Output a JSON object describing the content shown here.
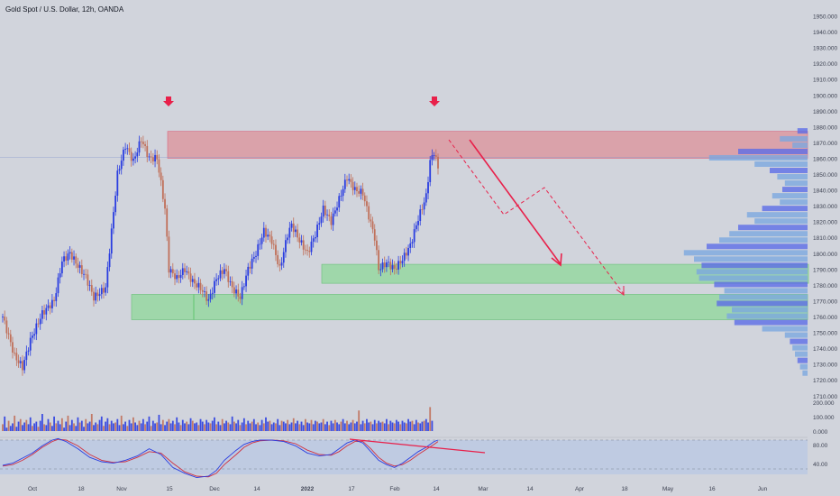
{
  "header": {
    "symbol_title": "Gold Spot / U.S. Dollar, 12h, OANDA"
  },
  "colors": {
    "background": "#d1d4dc",
    "candle_up": "#2a3de0",
    "candle_down": "#c0705a",
    "supply_zone": "#e0828a",
    "demand_zone": "#7ed98a",
    "arrow": "#e8204a",
    "stoch_k": "#2a3de0",
    "stoch_d": "#d03040",
    "stoch_band": "#b8c8e4"
  },
  "chart_data": {
    "type": "candlestick",
    "title": "Gold Spot / U.S. Dollar, 12h, OANDA",
    "xlabel": "",
    "ylabel": "",
    "ylim": [
      1715,
      1952
    ],
    "price_ticks": [
      1950,
      1940,
      1930,
      1920,
      1910,
      1900,
      1890,
      1880,
      1870,
      1860,
      1850,
      1840,
      1830,
      1820,
      1810,
      1800,
      1790,
      1780,
      1770,
      1760,
      1750,
      1740,
      1730,
      1720,
      1710
    ],
    "price_tick_labels": [
      "1950.000",
      "1940.000",
      "1930.000",
      "1920.000",
      "1910.000",
      "1900.000",
      "1890.000",
      "1880.000",
      "1870.000",
      "1860.000",
      "1850.000",
      "1840.000",
      "1830.000",
      "1820.000",
      "1810.000",
      "1800.000",
      "1790.000",
      "1780.000",
      "1770.000",
      "1760.000",
      "1750.000",
      "1740.000",
      "1730.000",
      "1720.000",
      "1710.000"
    ],
    "volume_tick_labels": [
      "200.000",
      "100.000",
      "0.000"
    ],
    "stoch_tick_labels": [
      "80.00",
      "40.00"
    ],
    "time_labels": [
      "Oct",
      "18",
      "Nov",
      "15",
      "Dec",
      "14",
      "2022",
      "17",
      "Feb",
      "14",
      "Mar",
      "14",
      "Apr",
      "18",
      "May",
      "16",
      "Jun"
    ],
    "price_path": [
      [
        0,
        1760
      ],
      [
        6,
        1735
      ],
      [
        10,
        1728
      ],
      [
        14,
        1745
      ],
      [
        20,
        1762
      ],
      [
        26,
        1770
      ],
      [
        30,
        1795
      ],
      [
        34,
        1800
      ],
      [
        38,
        1792
      ],
      [
        42,
        1785
      ],
      [
        46,
        1772
      ],
      [
        52,
        1778
      ],
      [
        58,
        1850
      ],
      [
        62,
        1868
      ],
      [
        66,
        1858
      ],
      [
        70,
        1872
      ],
      [
        74,
        1860
      ],
      [
        78,
        1860
      ],
      [
        82,
        1828
      ],
      [
        84,
        1790
      ],
      [
        88,
        1784
      ],
      [
        92,
        1790
      ],
      [
        96,
        1782
      ],
      [
        100,
        1778
      ],
      [
        104,
        1770
      ],
      [
        108,
        1784
      ],
      [
        112,
        1790
      ],
      [
        116,
        1778
      ],
      [
        120,
        1772
      ],
      [
        124,
        1790
      ],
      [
        128,
        1800
      ],
      [
        132,
        1814
      ],
      [
        136,
        1808
      ],
      [
        140,
        1790
      ],
      [
        144,
        1812
      ],
      [
        146,
        1818
      ],
      [
        150,
        1808
      ],
      [
        154,
        1800
      ],
      [
        158,
        1812
      ],
      [
        162,
        1828
      ],
      [
        166,
        1820
      ],
      [
        170,
        1834
      ],
      [
        174,
        1848
      ],
      [
        178,
        1840
      ],
      [
        182,
        1838
      ],
      [
        184,
        1828
      ],
      [
        188,
        1810
      ],
      [
        190,
        1790
      ],
      [
        194,
        1794
      ],
      [
        198,
        1790
      ],
      [
        202,
        1796
      ],
      [
        206,
        1805
      ],
      [
        210,
        1822
      ],
      [
        214,
        1836
      ],
      [
        216,
        1858
      ],
      [
        218,
        1864
      ],
      [
        220,
        1854
      ]
    ],
    "volumes": [
      40,
      85,
      20,
      60,
      30,
      45,
      90,
      25,
      55,
      70,
      35,
      50,
      65,
      40,
      80,
      30,
      45,
      55,
      25,
      60,
      100,
      40,
      35,
      70,
      50,
      30,
      85,
      45,
      60,
      40,
      75,
      20,
      55,
      90,
      35,
      65,
      45,
      30,
      80,
      50,
      60,
      25,
      70,
      45,
      55,
      100,
      35,
      50,
      40,
      65,
      85,
      30,
      55,
      75,
      40,
      60,
      45,
      50,
      70,
      35,
      90,
      40,
      55,
      30,
      65,
      45,
      80,
      50,
      35,
      60,
      45,
      70,
      40,
      55,
      85,
      30,
      60,
      45,
      50,
      95,
      40,
      65,
      35,
      55,
      70,
      45,
      60,
      40,
      80,
      50,
      35,
      65,
      45,
      55,
      40,
      75,
      60,
      45,
      50,
      35,
      70,
      55,
      40,
      65,
      50,
      45,
      60,
      80,
      40,
      55,
      35,
      70,
      45,
      60,
      50,
      40,
      85,
      55,
      45,
      65,
      35,
      50,
      75,
      40,
      60,
      45,
      55,
      70,
      40,
      50,
      35,
      65,
      45,
      80,
      55,
      60,
      40,
      50,
      45,
      70,
      35,
      60,
      55,
      45,
      65,
      40,
      50,
      75,
      45,
      60,
      40,
      55,
      35,
      70,
      50,
      45,
      65,
      40,
      60,
      55,
      45,
      50,
      70,
      40,
      55,
      35,
      60,
      45,
      65,
      50,
      40,
      55,
      70,
      45,
      60,
      40,
      50,
      65,
      45,
      55,
      120,
      40,
      60,
      45,
      70,
      50,
      55,
      40,
      65,
      45,
      60,
      50,
      55,
      45,
      70,
      40,
      60,
      50,
      45,
      65,
      55,
      40,
      60,
      50,
      45,
      70,
      55,
      60,
      40,
      65,
      50,
      45,
      55,
      60,
      70,
      50,
      140,
      60
    ],
    "stoch_k": [
      [
        0,
        45
      ],
      [
        5,
        48
      ],
      [
        10,
        55
      ],
      [
        15,
        62
      ],
      [
        20,
        72
      ],
      [
        25,
        80
      ],
      [
        28,
        82
      ],
      [
        32,
        78
      ],
      [
        38,
        68
      ],
      [
        44,
        56
      ],
      [
        50,
        50
      ],
      [
        56,
        48
      ],
      [
        62,
        52
      ],
      [
        68,
        58
      ],
      [
        74,
        68
      ],
      [
        80,
        60
      ],
      [
        86,
        42
      ],
      [
        92,
        34
      ],
      [
        98,
        28
      ],
      [
        104,
        30
      ],
      [
        108,
        38
      ],
      [
        112,
        52
      ],
      [
        118,
        66
      ],
      [
        122,
        74
      ],
      [
        126,
        78
      ],
      [
        130,
        80
      ],
      [
        136,
        80
      ],
      [
        142,
        78
      ],
      [
        148,
        72
      ],
      [
        154,
        62
      ],
      [
        160,
        58
      ],
      [
        166,
        60
      ],
      [
        170,
        68
      ],
      [
        174,
        76
      ],
      [
        178,
        80
      ],
      [
        182,
        76
      ],
      [
        186,
        64
      ],
      [
        190,
        52
      ],
      [
        194,
        46
      ],
      [
        198,
        42
      ],
      [
        202,
        48
      ],
      [
        206,
        56
      ],
      [
        210,
        64
      ],
      [
        214,
        70
      ],
      [
        218,
        78
      ],
      [
        220,
        80
      ]
    ],
    "stoch_d": [
      [
        0,
        44
      ],
      [
        5,
        46
      ],
      [
        10,
        52
      ],
      [
        15,
        60
      ],
      [
        20,
        70
      ],
      [
        25,
        78
      ],
      [
        28,
        81
      ],
      [
        32,
        80
      ],
      [
        38,
        72
      ],
      [
        44,
        60
      ],
      [
        50,
        52
      ],
      [
        56,
        49
      ],
      [
        62,
        50
      ],
      [
        68,
        56
      ],
      [
        74,
        64
      ],
      [
        80,
        62
      ],
      [
        86,
        48
      ],
      [
        92,
        36
      ],
      [
        98,
        30
      ],
      [
        104,
        29
      ],
      [
        108,
        34
      ],
      [
        112,
        46
      ],
      [
        118,
        60
      ],
      [
        122,
        70
      ],
      [
        126,
        76
      ],
      [
        130,
        79
      ],
      [
        136,
        80
      ],
      [
        142,
        79
      ],
      [
        148,
        75
      ],
      [
        154,
        66
      ],
      [
        160,
        60
      ],
      [
        166,
        59
      ],
      [
        170,
        64
      ],
      [
        174,
        72
      ],
      [
        178,
        78
      ],
      [
        182,
        78
      ],
      [
        186,
        68
      ],
      [
        190,
        56
      ],
      [
        194,
        48
      ],
      [
        198,
        44
      ],
      [
        202,
        46
      ],
      [
        206,
        52
      ],
      [
        210,
        60
      ],
      [
        214,
        67
      ],
      [
        218,
        74
      ],
      [
        220,
        78
      ]
    ],
    "zones": [
      {
        "kind": "supply",
        "price_top": 1877,
        "price_bottom": 1860
      },
      {
        "kind": "demand",
        "price_top": 1793,
        "price_bottom": 1781
      },
      {
        "kind": "demand",
        "price_top": 1774,
        "price_bottom": 1758
      }
    ],
    "volume_profile": [
      [
        1877,
        0.08
      ],
      [
        1872,
        0.22
      ],
      [
        1868,
        0.12
      ],
      [
        1864,
        0.55
      ],
      [
        1860,
        0.78
      ],
      [
        1856,
        0.42
      ],
      [
        1852,
        0.3
      ],
      [
        1848,
        0.24
      ],
      [
        1844,
        0.18
      ],
      [
        1840,
        0.2
      ],
      [
        1836,
        0.28
      ],
      [
        1832,
        0.22
      ],
      [
        1828,
        0.36
      ],
      [
        1824,
        0.48
      ],
      [
        1820,
        0.42
      ],
      [
        1816,
        0.55
      ],
      [
        1812,
        0.62
      ],
      [
        1808,
        0.7
      ],
      [
        1804,
        0.8
      ],
      [
        1800,
        0.98
      ],
      [
        1796,
        0.9
      ],
      [
        1792,
        0.84
      ],
      [
        1788,
        0.88
      ],
      [
        1784,
        0.86
      ],
      [
        1780,
        0.74
      ],
      [
        1776,
        0.66
      ],
      [
        1772,
        0.7
      ],
      [
        1768,
        0.72
      ],
      [
        1764,
        0.6
      ],
      [
        1760,
        0.64
      ],
      [
        1756,
        0.58
      ],
      [
        1752,
        0.36
      ],
      [
        1748,
        0.18
      ],
      [
        1744,
        0.14
      ],
      [
        1740,
        0.12
      ],
      [
        1736,
        0.1
      ],
      [
        1732,
        0.08
      ],
      [
        1728,
        0.06
      ],
      [
        1724,
        0.04
      ]
    ]
  }
}
